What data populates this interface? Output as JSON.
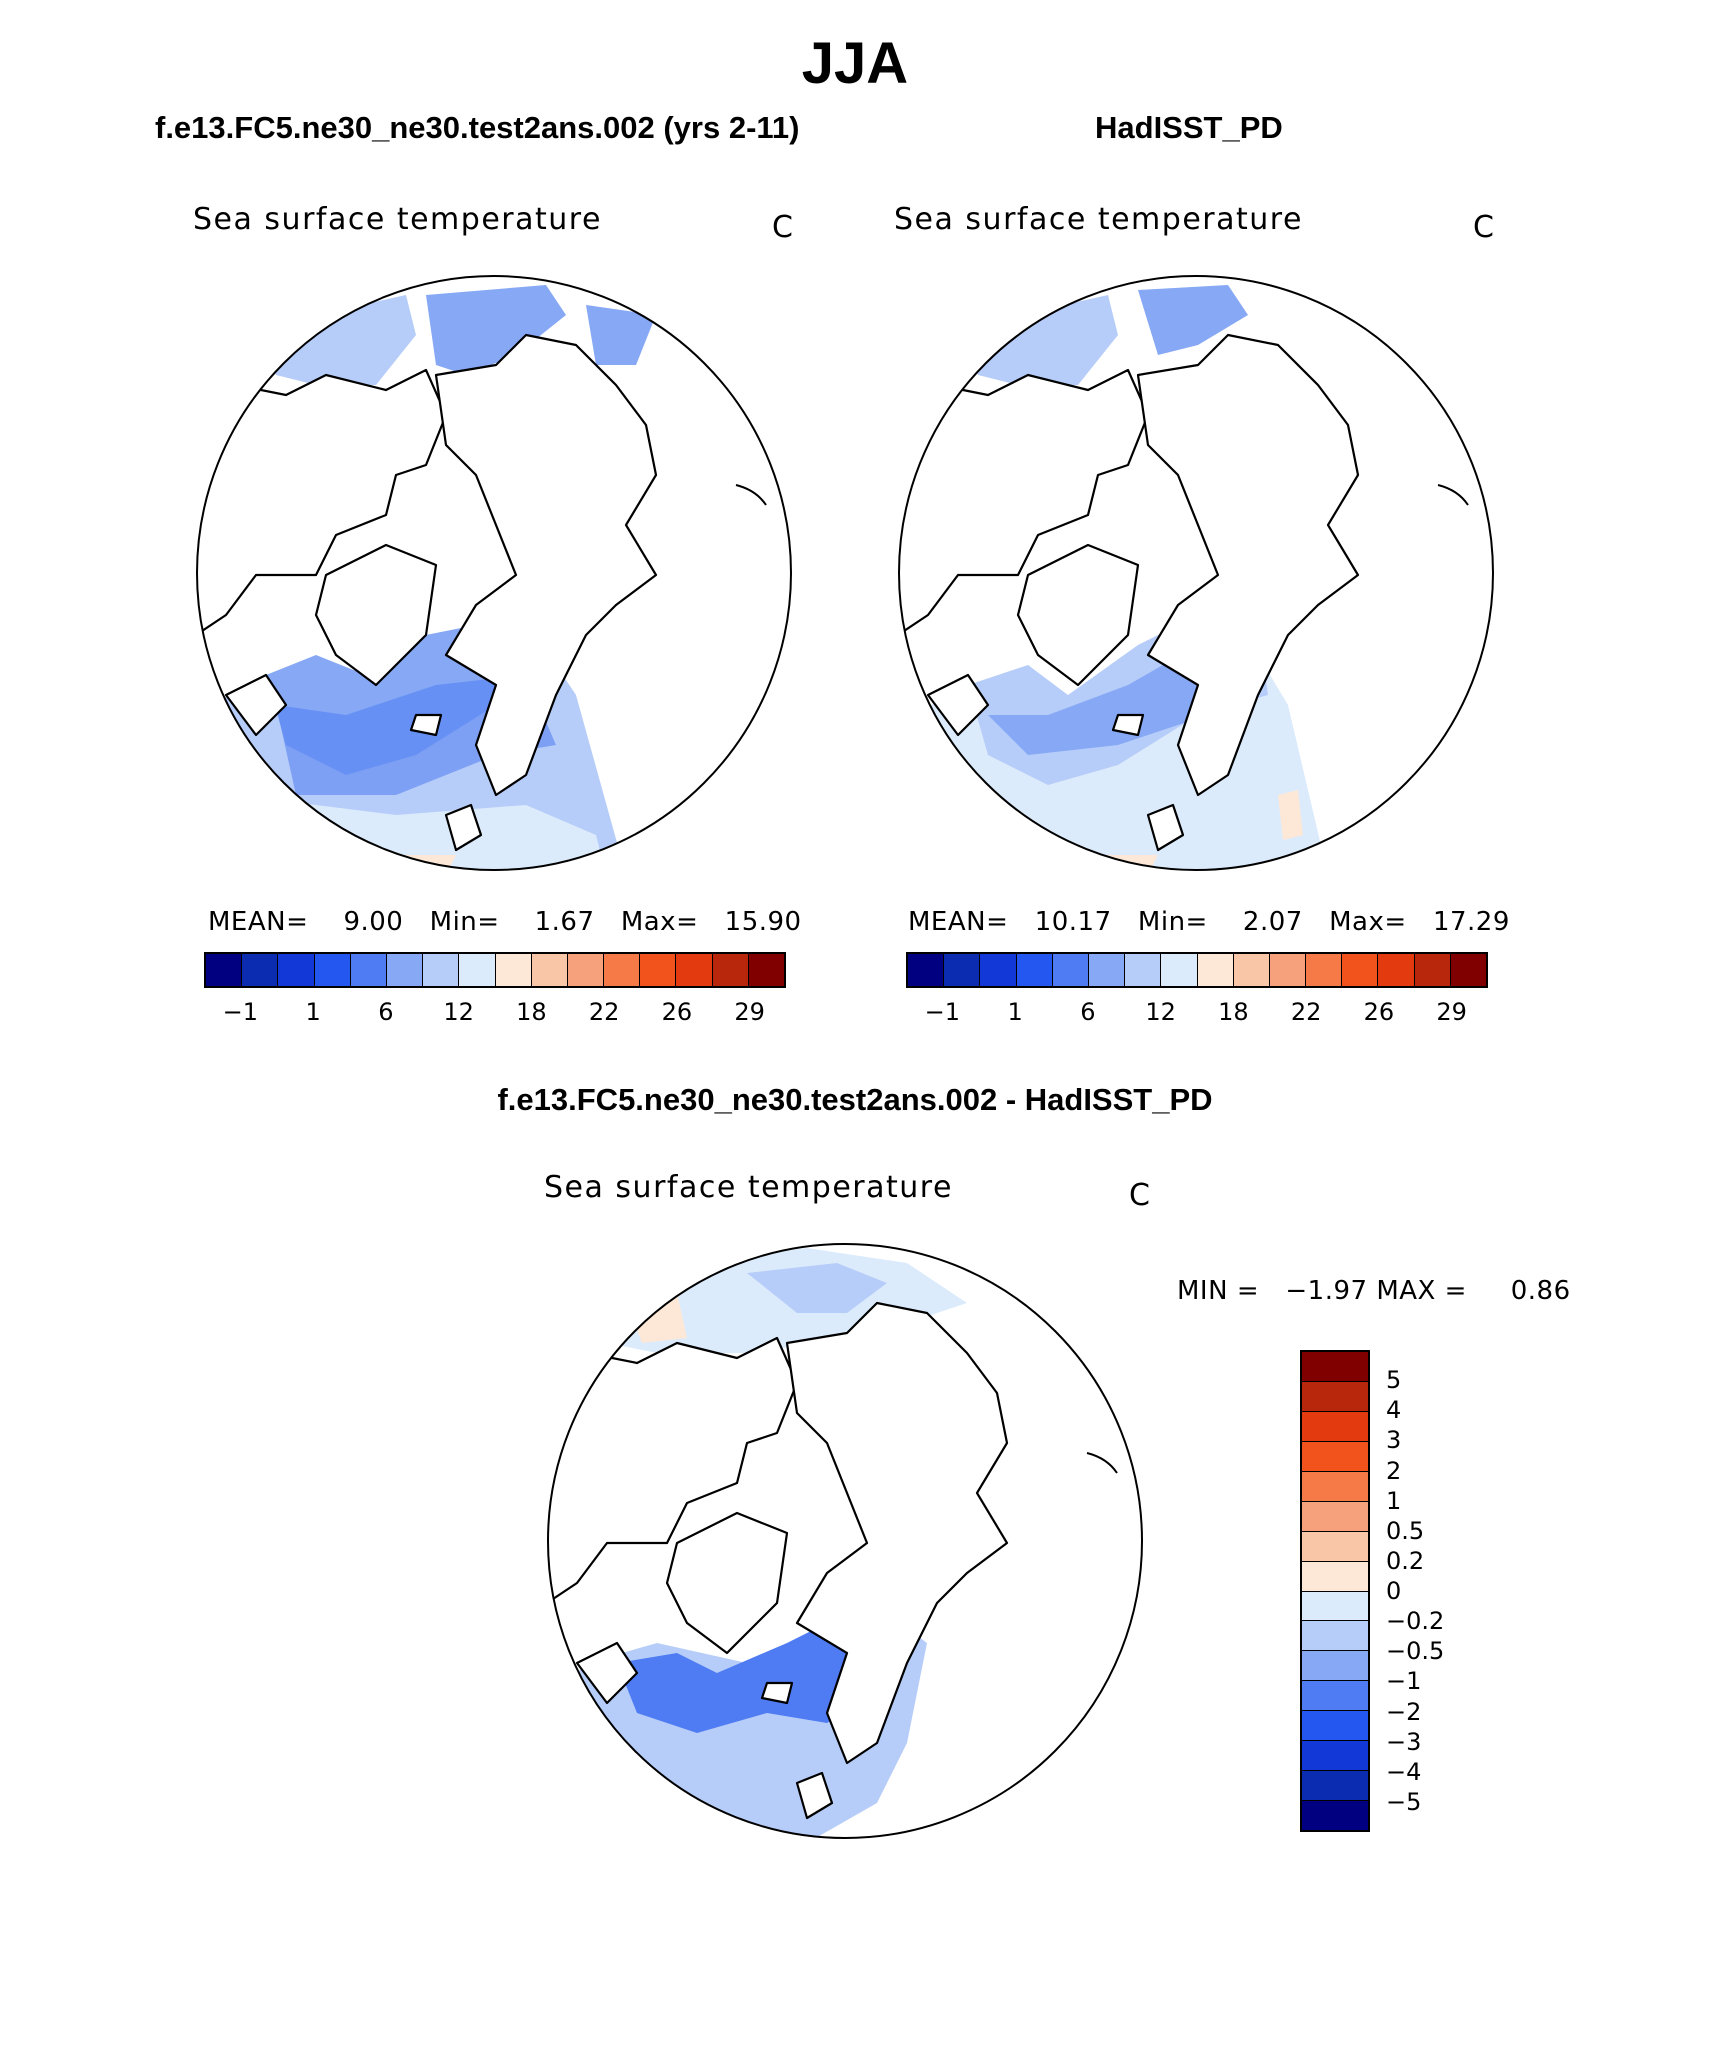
{
  "page": {
    "title": "JJA"
  },
  "panels": [
    {
      "title": "f.e13.FC5.ne30_ne30.test2ans.002 (yrs 2-11)",
      "variable": "Sea surface temperature",
      "units": "C",
      "stats": {
        "mean_label": "MEAN=",
        "mean": "9.00",
        "min_label": "Min=",
        "min": "1.67",
        "max_label": "Max=",
        "max": "15.90"
      },
      "colorbar_ticks": [
        "−1",
        "1",
        "6",
        "12",
        "18",
        "22",
        "26",
        "29"
      ]
    },
    {
      "title": "HadISST_PD",
      "variable": "Sea surface temperature",
      "units": "C",
      "stats": {
        "mean_label": "MEAN=",
        "mean": "10.17",
        "min_label": "Min=",
        "min": "2.07",
        "max_label": "Max=",
        "max": "17.29"
      },
      "colorbar_ticks": [
        "−1",
        "1",
        "6",
        "12",
        "18",
        "22",
        "26",
        "29"
      ]
    }
  ],
  "diff_panel": {
    "title": "f.e13.FC5.ne30_ne30.test2ans.002 - HadISST_PD",
    "variable": "Sea surface temperature",
    "units": "C",
    "minmax": "MIN =   −1.97 MAX =     0.86",
    "colorbar_ticks": [
      "5",
      "4",
      "3",
      "2",
      "1",
      "0.5",
      "0.2",
      "0",
      "−0.2",
      "−0.5",
      "−1",
      "−2",
      "−3",
      "−4",
      "−5"
    ]
  },
  "colors": {
    "abs_scale": [
      "#000080",
      "#0b2bb0",
      "#1238d8",
      "#2456f0",
      "#4f7cf3",
      "#86a8f5",
      "#b7cdf9",
      "#dcebfb",
      "#fde8d8",
      "#f9c6a8",
      "#f7a17c",
      "#f57a47",
      "#f2521c",
      "#e33a10",
      "#b8260c",
      "#800000"
    ],
    "diff_scale": [
      "#800000",
      "#b8260c",
      "#e33a10",
      "#f2521c",
      "#f57a47",
      "#f7a17c",
      "#f9c6a8",
      "#fde8d8",
      "#dcebfb",
      "#b7cdf9",
      "#86a8f5",
      "#4f7cf3",
      "#2456f0",
      "#1238d8",
      "#0b2bb0",
      "#000080"
    ]
  }
}
